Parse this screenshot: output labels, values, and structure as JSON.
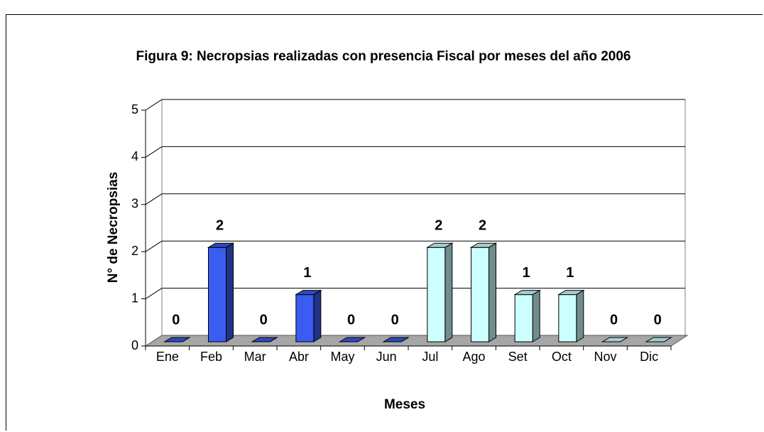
{
  "chart_data": {
    "type": "bar",
    "title": "Figura 9: Necropsias realizadas con presencia Fiscal por meses del año 2006",
    "x_label": "Meses",
    "y_label": "N° de Necropsias",
    "categories": [
      "Ene",
      "Feb",
      "Mar",
      "Abr",
      "May",
      "Jun",
      "Jul",
      "Ago",
      "Set",
      "Oct",
      "Nov",
      "Dic"
    ],
    "values": [
      0,
      2,
      0,
      1,
      0,
      0,
      2,
      2,
      1,
      1,
      0,
      0
    ],
    "colors": [
      "#3a5cf0",
      "#3a5cf0",
      "#3a5cf0",
      "#3a5cf0",
      "#3a5cf0",
      "#3a5cf0",
      "#ccffff",
      "#ccffff",
      "#ccffff",
      "#ccffff",
      "#ccffff",
      "#ccffff"
    ],
    "ylim": [
      0,
      5
    ],
    "yticks": [
      0,
      1,
      2,
      3,
      4,
      5
    ],
    "grid": true
  }
}
